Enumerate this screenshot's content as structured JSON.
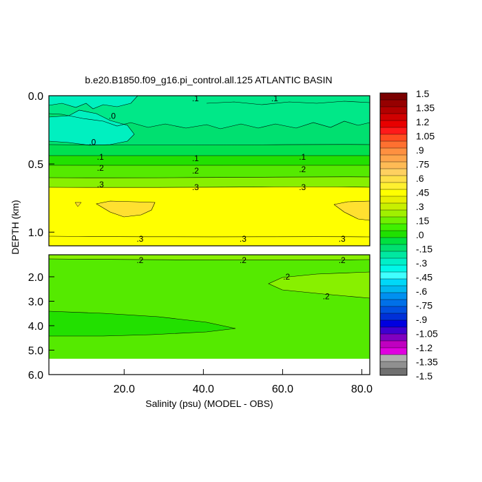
{
  "chart_data": {
    "type": "heatmap",
    "title": "b.e20.B1850.f09_g16.pi_control.all.125 ATLANTIC BASIN",
    "xlabel": "Salinity (psu) (MODEL - OBS)",
    "ylabel": "DEPTH (km)",
    "xlim": [
      1,
      82
    ],
    "upper_panel": {
      "ylim": [
        0,
        1.1
      ],
      "y_ticks": [
        0,
        0.5,
        1.0
      ],
      "y_tick_labels": [
        "0.0",
        "0.5",
        "1.0"
      ]
    },
    "lower_panel": {
      "ylim": [
        1.1,
        6.0
      ],
      "y_ticks": [
        2,
        3,
        4,
        5,
        6
      ],
      "y_tick_labels": [
        "2.0",
        "3.0",
        "4.0",
        "5.0",
        "6.0"
      ]
    },
    "x_ticks": [
      20,
      40,
      60,
      80
    ],
    "x_tick_labels": [
      "20.0",
      "40.0",
      "60.0",
      "80.0"
    ],
    "colorbar": {
      "labels": [
        "1.5",
        "1.35",
        "1.2",
        "1.05",
        ".9",
        ".75",
        ".6",
        ".45",
        ".3",
        ".15",
        ".0",
        "-.15",
        "-.3",
        "-.45",
        "-.6",
        "-.75",
        "-.9",
        "-1.05",
        "-1.2",
        "-1.35",
        "-1.5"
      ],
      "colors": [
        "#7a0000",
        "#960000",
        "#b20000",
        "#d00000",
        "#e80000",
        "#ff1a1a",
        "#ff4d20",
        "#ff7030",
        "#ff9040",
        "#ffa54a",
        "#ffbb55",
        "#ffd060",
        "#ffe048",
        "#fff030",
        "#ffff00",
        "#e8f000",
        "#c8f000",
        "#a0f000",
        "#70f000",
        "#40f000",
        "#20e000",
        "#00e040",
        "#00e070",
        "#00e8a0",
        "#00f0c8",
        "#00f8e8",
        "#40ffff",
        "#00d8f8",
        "#00b8f0",
        "#0090f0",
        "#0070e8",
        "#0050e0",
        "#0030d8",
        "#0000e0",
        "#4000d0",
        "#8000c0",
        "#c000c0",
        "#e000e0",
        "#b0b0b0",
        "#909090",
        "#707070"
      ]
    },
    "contour_labels": {
      "upper": [
        {
          "text": ".1",
          "x": 38,
          "y": 0.02
        },
        {
          "text": ".1",
          "x": 58,
          "y": 0.02
        },
        {
          "text": ".0",
          "x": 17,
          "y": 0.15
        },
        {
          "text": ".0",
          "x": 12,
          "y": 0.34
        },
        {
          "text": ".1",
          "x": 14,
          "y": 0.45
        },
        {
          "text": ".1",
          "x": 38,
          "y": 0.46
        },
        {
          "text": ".1",
          "x": 65,
          "y": 0.45
        },
        {
          "text": ".2",
          "x": 14,
          "y": 0.53
        },
        {
          "text": ".2",
          "x": 38,
          "y": 0.55
        },
        {
          "text": ".2",
          "x": 65,
          "y": 0.54
        },
        {
          "text": ".3",
          "x": 14,
          "y": 0.65
        },
        {
          "text": ".3",
          "x": 38,
          "y": 0.67
        },
        {
          "text": ".3",
          "x": 65,
          "y": 0.67
        },
        {
          "text": ".3",
          "x": 24,
          "y": 1.05
        },
        {
          "text": ".3",
          "x": 50,
          "y": 1.05
        },
        {
          "text": ".3",
          "x": 75,
          "y": 1.05
        }
      ],
      "lower": [
        {
          "text": ".2",
          "x": 24,
          "y": 1.32
        },
        {
          "text": ".2",
          "x": 50,
          "y": 1.32
        },
        {
          "text": ".2",
          "x": 75,
          "y": 1.32
        },
        {
          "text": ".2",
          "x": 61,
          "y": 2.0
        },
        {
          "text": ".2",
          "x": 71,
          "y": 2.8
        }
      ]
    }
  }
}
